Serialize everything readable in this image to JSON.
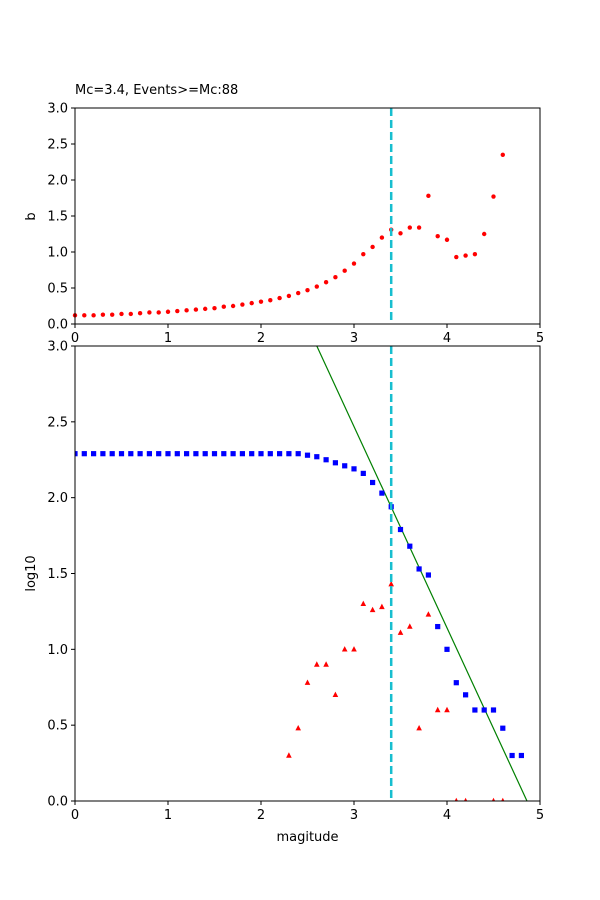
{
  "chart_data": [
    {
      "type": "scatter",
      "title": "Mc=3.4, Events>=Mc:88",
      "xlabel": "",
      "ylabel": "b",
      "xlim": [
        0,
        5
      ],
      "ylim": [
        0,
        3
      ],
      "xticks": [
        "0",
        "1",
        "2",
        "3",
        "4",
        "5"
      ],
      "yticks": [
        "0.0",
        "0.5",
        "1.0",
        "1.5",
        "2.0",
        "2.5",
        "3.0"
      ],
      "grid": false,
      "mc_line": 3.4,
      "series": [
        {
          "color": "#ff0000",
          "marker": "circle",
          "x": [
            0.0,
            0.1,
            0.2,
            0.3,
            0.4,
            0.5,
            0.6,
            0.7,
            0.8,
            0.9,
            1.0,
            1.1,
            1.2,
            1.3,
            1.4,
            1.5,
            1.6,
            1.7,
            1.8,
            1.9,
            2.0,
            2.1,
            2.2,
            2.3,
            2.4,
            2.5,
            2.6,
            2.7,
            2.8,
            2.9,
            3.0,
            3.1,
            3.2,
            3.3,
            3.4,
            3.5,
            3.6,
            3.7,
            3.8,
            3.9,
            4.0,
            4.1,
            4.2,
            4.3,
            4.4,
            4.5,
            4.6
          ],
          "y": [
            0.12,
            0.12,
            0.12,
            0.13,
            0.13,
            0.14,
            0.14,
            0.15,
            0.16,
            0.16,
            0.17,
            0.18,
            0.19,
            0.2,
            0.21,
            0.22,
            0.24,
            0.25,
            0.27,
            0.29,
            0.31,
            0.33,
            0.36,
            0.39,
            0.43,
            0.47,
            0.52,
            0.58,
            0.65,
            0.74,
            0.84,
            0.97,
            1.07,
            1.2,
            1.31,
            1.26,
            1.34,
            1.34,
            1.78,
            1.22,
            1.17,
            0.93,
            0.95,
            0.97,
            1.25,
            1.77,
            2.35
          ]
        }
      ]
    },
    {
      "type": "scatter",
      "title": "",
      "xlabel": "magitude",
      "ylabel": "log10",
      "xlim": [
        0,
        5
      ],
      "ylim": [
        0,
        3
      ],
      "xticks": [
        "0",
        "1",
        "2",
        "3",
        "4",
        "5"
      ],
      "yticks": [
        "0.0",
        "0.5",
        "1.0",
        "1.5",
        "2.0",
        "2.5",
        "3.0"
      ],
      "grid": false,
      "mc_line": 3.4,
      "fit_line": {
        "color": "#008000",
        "x": [
          2.6,
          4.86
        ],
        "y": [
          3.0,
          0.0
        ]
      },
      "series": [
        {
          "color": "#0000ff",
          "marker": "square",
          "x": [
            0.0,
            0.1,
            0.2,
            0.3,
            0.4,
            0.5,
            0.6,
            0.7,
            0.8,
            0.9,
            1.0,
            1.1,
            1.2,
            1.3,
            1.4,
            1.5,
            1.6,
            1.7,
            1.8,
            1.9,
            2.0,
            2.1,
            2.2,
            2.3,
            2.4,
            2.5,
            2.6,
            2.7,
            2.8,
            2.9,
            3.0,
            3.1,
            3.2,
            3.3,
            3.4,
            3.5,
            3.6,
            3.7,
            3.8,
            3.9,
            4.0,
            4.1,
            4.2,
            4.3,
            4.4,
            4.5,
            4.6,
            4.7,
            4.8
          ],
          "y": [
            2.29,
            2.29,
            2.29,
            2.29,
            2.29,
            2.29,
            2.29,
            2.29,
            2.29,
            2.29,
            2.29,
            2.29,
            2.29,
            2.29,
            2.29,
            2.29,
            2.29,
            2.29,
            2.29,
            2.29,
            2.29,
            2.29,
            2.29,
            2.29,
            2.29,
            2.28,
            2.27,
            2.25,
            2.23,
            2.21,
            2.19,
            2.16,
            2.1,
            2.03,
            1.94,
            1.79,
            1.68,
            1.53,
            1.49,
            1.15,
            1.0,
            0.78,
            0.7,
            0.6,
            0.6,
            0.6,
            0.48,
            0.3,
            0.3
          ]
        },
        {
          "color": "#ff0000",
          "marker": "triangle",
          "x": [
            2.3,
            2.4,
            2.5,
            2.6,
            2.7,
            2.8,
            2.9,
            3.0,
            3.1,
            3.2,
            3.3,
            3.4,
            3.5,
            3.6,
            3.7,
            3.8,
            3.9,
            4.0,
            4.1,
            4.2,
            4.5,
            4.6
          ],
          "y": [
            0.3,
            0.48,
            0.78,
            0.9,
            0.9,
            0.7,
            1.0,
            1.0,
            1.3,
            1.26,
            1.28,
            1.43,
            1.11,
            1.15,
            0.48,
            1.23,
            0.6,
            0.6,
            0.0,
            0.0,
            0.0,
            0.0
          ]
        }
      ]
    }
  ]
}
